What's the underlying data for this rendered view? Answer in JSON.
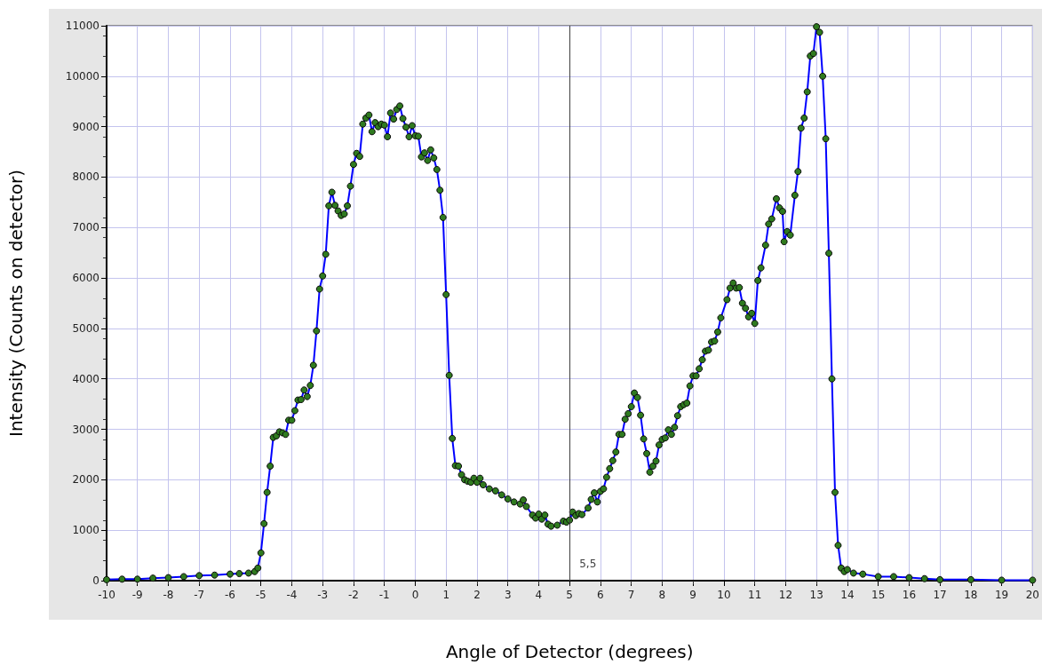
{
  "chart_data": {
    "type": "line",
    "xlabel": "Angle of Detector (degrees)",
    "ylabel": "Intensity (Counts on detector)",
    "xlim": [
      -10,
      20
    ],
    "xticks": [
      -10,
      -9,
      -8,
      -7,
      -6,
      -5,
      -4,
      -3,
      -2,
      -1,
      0,
      1,
      2,
      3,
      4,
      5,
      6,
      7,
      8,
      9,
      10,
      11,
      12,
      13,
      14,
      15,
      16,
      17,
      18,
      19,
      20
    ],
    "ylim": [
      0,
      11000
    ],
    "yticks": [
      0,
      1000,
      2000,
      3000,
      4000,
      5000,
      6000,
      7000,
      8000,
      9000,
      10000,
      11000
    ],
    "grid": true,
    "marker": "circle",
    "line_style": "solid",
    "ref_lines": [
      {
        "axis": "x",
        "value": 5,
        "color": "#404040"
      }
    ],
    "annotations": [
      {
        "text": "5,5",
        "x": 5,
        "y": 0
      }
    ],
    "series": [
      {
        "color": "#0000ff",
        "x": [
          -10,
          -9.5,
          -9,
          -8.5,
          -8,
          -7.5,
          -7,
          -6.5,
          -6,
          -5.7,
          -5.4,
          -5.2,
          -5.1,
          -5.0,
          -4.9,
          -4.8,
          -4.7,
          -4.6,
          -4.5,
          -4.4,
          -4.3,
          -4.2,
          -4.1,
          -4.0,
          -3.9,
          -3.8,
          -3.7,
          -3.6,
          -3.5,
          -3.4,
          -3.3,
          -3.2,
          -3.1,
          -3.0,
          -2.9,
          -2.8,
          -2.7,
          -2.6,
          -2.5,
          -2.4,
          -2.3,
          -2.2,
          -2.1,
          -2.0,
          -1.9,
          -1.8,
          -1.7,
          -1.6,
          -1.5,
          -1.4,
          -1.3,
          -1.2,
          -1.1,
          -1.0,
          -0.9,
          -0.8,
          -0.7,
          -0.6,
          -0.5,
          -0.4,
          -0.3,
          -0.2,
          -0.1,
          0.0,
          0.1,
          0.2,
          0.3,
          0.4,
          0.5,
          0.6,
          0.7,
          0.8,
          0.9,
          1.0,
          1.1,
          1.2,
          1.3,
          1.4,
          1.5,
          1.6,
          1.7,
          1.8,
          1.9,
          2.0,
          2.1,
          2.2,
          2.4,
          2.6,
          2.8,
          3.0,
          3.2,
          3.4,
          3.5,
          3.6,
          3.8,
          3.9,
          4.0,
          4.1,
          4.2,
          4.3,
          4.4,
          4.6,
          4.8,
          4.9,
          5.0,
          5.1,
          5.2,
          5.3,
          5.4,
          5.6,
          5.7,
          5.8,
          5.9,
          6.0,
          6.1,
          6.2,
          6.3,
          6.4,
          6.5,
          6.6,
          6.7,
          6.8,
          6.9,
          7.0,
          7.1,
          7.2,
          7.3,
          7.4,
          7.5,
          7.6,
          7.7,
          7.8,
          7.9,
          8.0,
          8.1,
          8.2,
          8.3,
          8.4,
          8.5,
          8.6,
          8.7,
          8.8,
          8.9,
          9.0,
          9.1,
          9.2,
          9.3,
          9.4,
          9.5,
          9.6,
          9.7,
          9.8,
          9.9,
          10.1,
          10.2,
          10.3,
          10.4,
          10.5,
          10.6,
          10.7,
          10.8,
          10.9,
          11.0,
          11.1,
          11.2,
          11.35,
          11.45,
          11.55,
          11.7,
          11.8,
          11.9,
          11.95,
          12.05,
          12.15,
          12.3,
          12.4,
          12.5,
          12.6,
          12.7,
          12.8,
          12.9,
          13.0,
          13.1,
          13.2,
          13.3,
          13.4,
          13.5,
          13.6,
          13.7,
          13.8,
          13.9,
          14.0,
          14.2,
          14.5,
          15.0,
          15.5,
          16.0,
          16.5,
          17.0,
          18.0,
          19.0,
          20.0
        ],
        "values": [
          20,
          30,
          30,
          50,
          60,
          80,
          100,
          110,
          130,
          140,
          150,
          180,
          250,
          550,
          1130,
          1750,
          2270,
          2840,
          2870,
          2950,
          2930,
          2900,
          3180,
          3180,
          3370,
          3580,
          3590,
          3780,
          3650,
          3870,
          4270,
          4950,
          5780,
          6040,
          6470,
          7430,
          7700,
          7440,
          7330,
          7240,
          7270,
          7430,
          7820,
          8250,
          8470,
          8410,
          9050,
          9170,
          9230,
          8900,
          9080,
          9000,
          9050,
          9030,
          8800,
          9270,
          9150,
          9340,
          9410,
          9160,
          8990,
          8800,
          9020,
          8820,
          8810,
          8400,
          8480,
          8330,
          8540,
          8380,
          8150,
          7740,
          7200,
          5670,
          4070,
          2820,
          2280,
          2270,
          2100,
          2000,
          1970,
          1950,
          2030,
          1950,
          2030,
          1900,
          1820,
          1780,
          1700,
          1620,
          1560,
          1520,
          1600,
          1470,
          1300,
          1240,
          1320,
          1220,
          1300,
          1120,
          1080,
          1100,
          1180,
          1160,
          1200,
          1360,
          1290,
          1330,
          1310,
          1440,
          1610,
          1740,
          1560,
          1770,
          1820,
          2050,
          2220,
          2380,
          2550,
          2900,
          2900,
          3200,
          3310,
          3450,
          3720,
          3630,
          3280,
          2810,
          2520,
          2150,
          2270,
          2370,
          2690,
          2800,
          2830,
          2990,
          2900,
          3040,
          3270,
          3450,
          3490,
          3520,
          3860,
          4060,
          4060,
          4200,
          4380,
          4550,
          4570,
          4730,
          4750,
          4930,
          5210,
          5570,
          5800,
          5900,
          5800,
          5810,
          5500,
          5400,
          5230,
          5300,
          5100,
          5950,
          6200,
          6650,
          7070,
          7170,
          7570,
          7390,
          7320,
          6720,
          6920,
          6850,
          7640,
          8110,
          8970,
          9170,
          9690,
          10400,
          10450,
          10980,
          10870,
          10000,
          8760,
          6490,
          4000,
          1750,
          700,
          250,
          180,
          220,
          150,
          130,
          80,
          80,
          60,
          40,
          20,
          20,
          10,
          10
        ]
      }
    ]
  }
}
